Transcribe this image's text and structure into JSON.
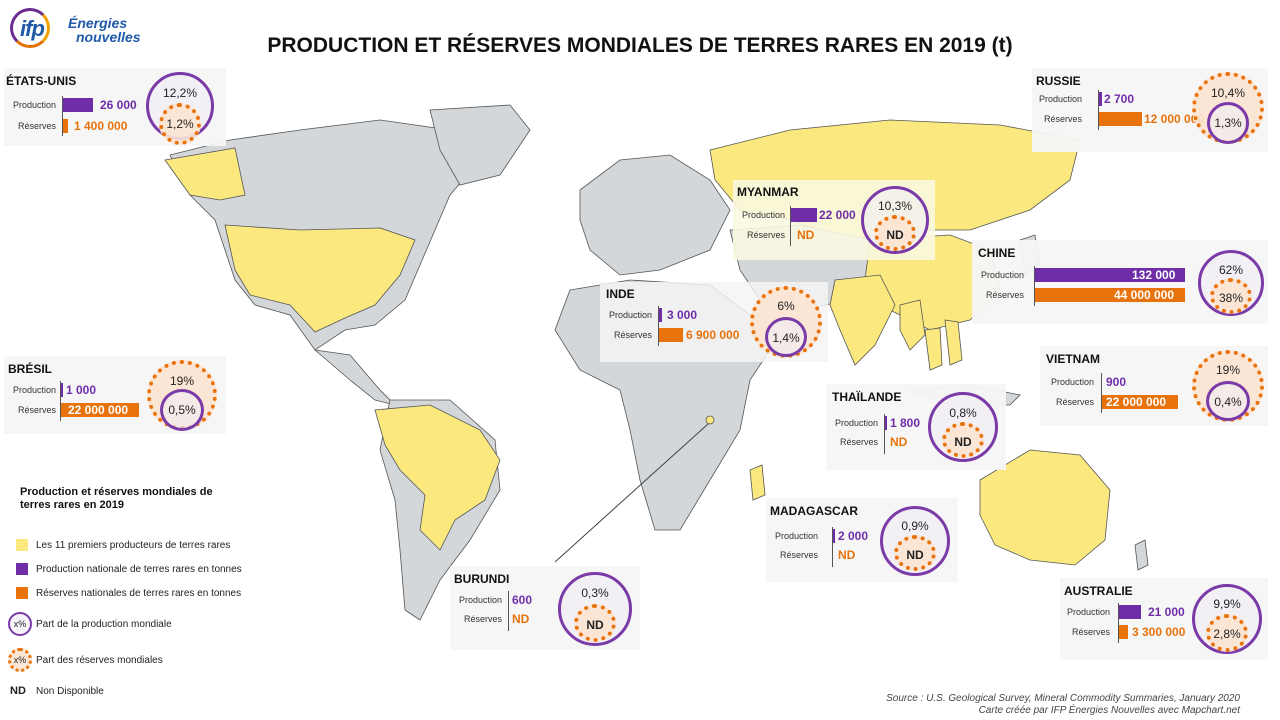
{
  "brand": {
    "logo_short": "ifp",
    "logo_line1": "Énergies",
    "logo_line2": "nouvelles"
  },
  "title": "PRODUCTION ET RÉSERVES MONDIALES DE TERRES RARES EN 2019 (t)",
  "labels": {
    "production": "Production",
    "reserves": "Réserves"
  },
  "colors": {
    "production": "#6f2da8",
    "reserves": "#e8720c",
    "top_producer": "#fbe97f",
    "other_country": "#d3d7da"
  },
  "countries": [
    {
      "name": "ÉTATS-UNIS",
      "production": "26 000",
      "reserves": "1 400 000",
      "prod_share": "12,2%",
      "res_share": "1,2%"
    },
    {
      "name": "RUSSIE",
      "production": "2 700",
      "reserves": "12 000 000",
      "prod_share": "1,3%",
      "res_share": "10,4%"
    },
    {
      "name": "MYANMAR",
      "production": "22 000",
      "reserves": "ND",
      "prod_share": "10,3%",
      "res_share": "ND"
    },
    {
      "name": "CHINE",
      "production": "132 000",
      "reserves": "44 000 000",
      "prod_share": "62%",
      "res_share": "38%"
    },
    {
      "name": "INDE",
      "production": "3 000",
      "reserves": "6 900 000",
      "prod_share": "1,4%",
      "res_share": "6%"
    },
    {
      "name": "BRÉSIL",
      "production": "1 000",
      "reserves": "22 000 000",
      "prod_share": "0,5%",
      "res_share": "19%"
    },
    {
      "name": "VIETNAM",
      "production": "900",
      "reserves": "22 000 000",
      "prod_share": "0,4%",
      "res_share": "19%"
    },
    {
      "name": "THAÏLANDE",
      "production": "1 800",
      "reserves": "ND",
      "prod_share": "0,8%",
      "res_share": "ND"
    },
    {
      "name": "MADAGASCAR",
      "production": "2 000",
      "reserves": "ND",
      "prod_share": "0,9%",
      "res_share": "ND"
    },
    {
      "name": "BURUNDI",
      "production": "600",
      "reserves": "ND",
      "prod_share": "0,3%",
      "res_share": "ND"
    },
    {
      "name": "AUSTRALIE",
      "production": "21 000",
      "reserves": "3 300 000",
      "prod_share": "9,9%",
      "res_share": "2,8%"
    }
  ],
  "legend": {
    "title": "Production et réserves mondiales de terres rares en 2019",
    "top_producers": "Les 11 premiers producteurs de terres rares",
    "national_production": "Production nationale de terres rares en tonnes",
    "national_reserves": "Réserves nationales de terres rares en tonnes",
    "production_share_symbol": "x%",
    "production_share": "Part de la production mondiale",
    "reserves_share_symbol": "x%",
    "reserves_share": "Part des réserves mondiales",
    "nd_symbol": "ND",
    "nd": "Non Disponible"
  },
  "source": {
    "line1": "Source : U.S. Geological Survey,  Mineral Commodity Summaries, January 2020",
    "line2": "Carte créée par IFP Énergies Nouvelles avec Mapchart.net"
  }
}
